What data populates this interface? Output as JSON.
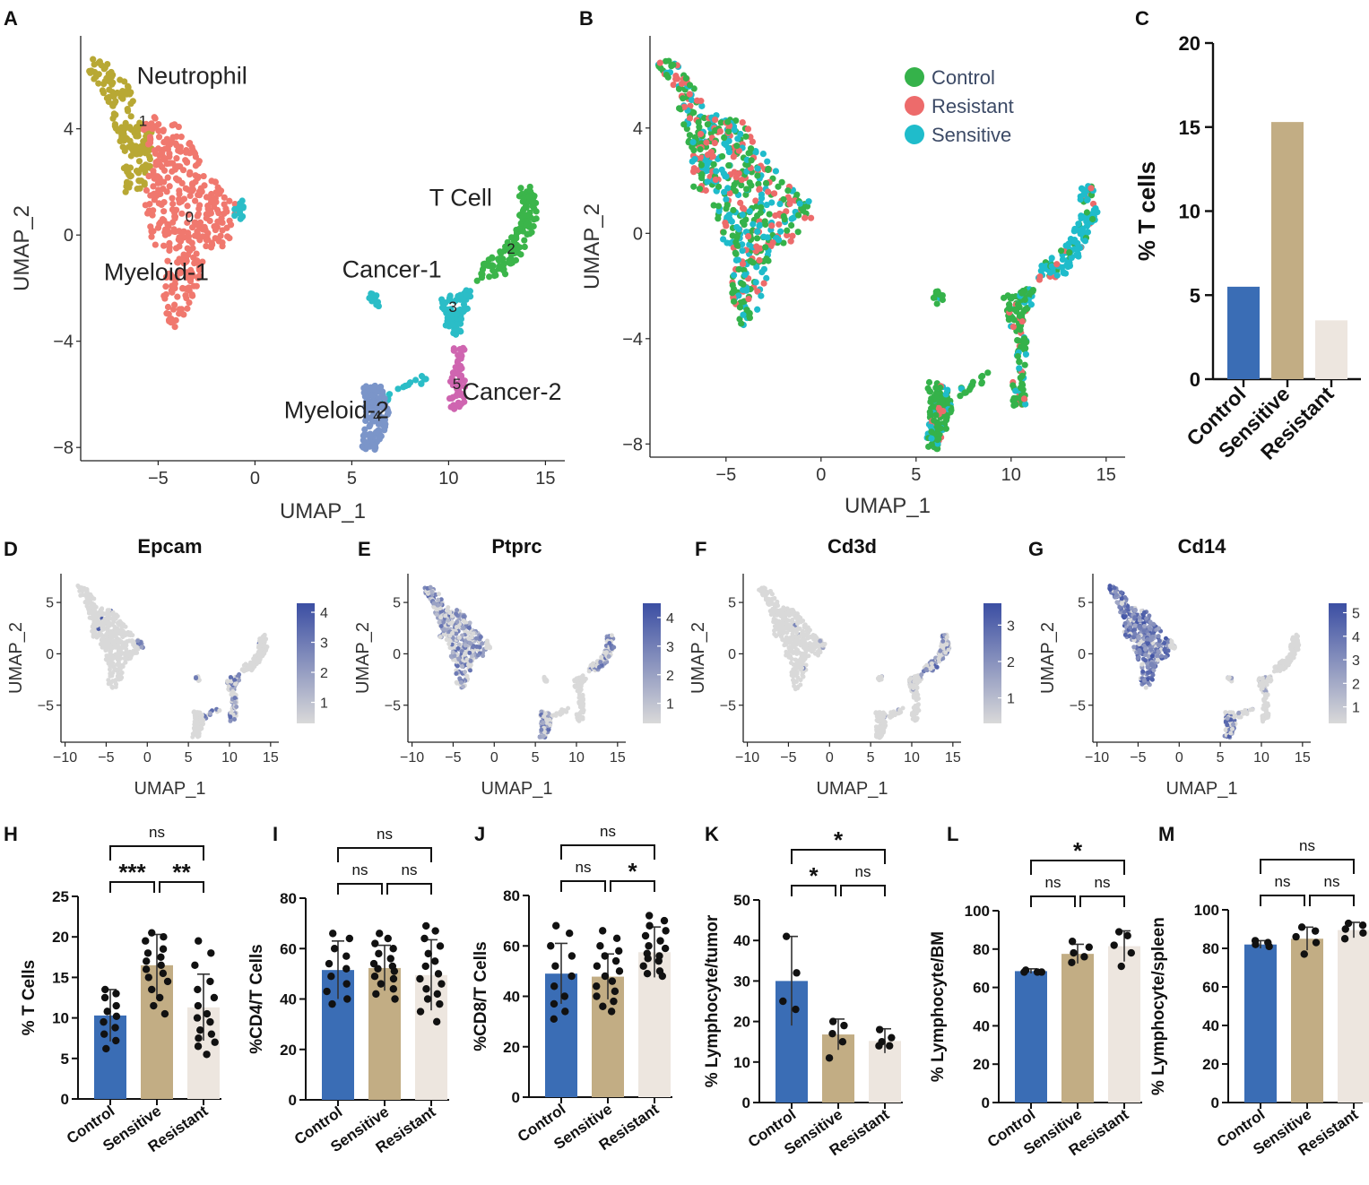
{
  "colors": {
    "control": "#3a6db5",
    "sensitive": "#c2ad84",
    "resistant": "#ede6df",
    "legend_control": "#35b24a",
    "legend_resistant": "#ed6b6b",
    "legend_sensitive": "#1fbccb",
    "cl0": "#f0786e",
    "cl1": "#b8a834",
    "cl2": "#3bb54a",
    "cl3": "#2bbdc7",
    "cl4": "#7b95c9",
    "cl5": "#cf65b0",
    "grey": "#d6d6d6",
    "feat_low": "#d9d9d9",
    "feat_high": "#3b4ea3"
  },
  "chart_data": [
    {
      "panel": "A",
      "type": "scatter",
      "xlabel": "UMAP_1",
      "ylabel": "UMAP_2",
      "xticks": [
        -5,
        0,
        5,
        10,
        15
      ],
      "yticks": [
        4,
        0,
        -4,
        -8
      ],
      "xlim": [
        -9,
        16
      ],
      "ylim": [
        -8.5,
        7.5
      ],
      "clusters": [
        {
          "id": "0",
          "name": "Myeloid-1",
          "color": "cl0"
        },
        {
          "id": "1",
          "name": "Neutrophil",
          "color": "cl1"
        },
        {
          "id": "2",
          "name": "T Cell",
          "color": "cl2"
        },
        {
          "id": "3",
          "name": "Cancer-1",
          "color": "cl3"
        },
        {
          "id": "4",
          "name": "Myeloid-2",
          "color": "cl4"
        },
        {
          "id": "5",
          "name": "Cancer-2",
          "color": "cl5"
        }
      ]
    },
    {
      "panel": "B",
      "type": "scatter",
      "xlabel": "UMAP_1",
      "ylabel": "UMAP_2",
      "xticks": [
        -5,
        0,
        5,
        10,
        15
      ],
      "yticks": [
        4,
        0,
        -4,
        -8
      ],
      "xlim": [
        -9,
        16
      ],
      "ylim": [
        -8.5,
        7.5
      ],
      "legend": [
        "Control",
        "Resistant",
        "Sensitive"
      ]
    },
    {
      "panel": "C",
      "type": "bar",
      "ylabel": "% T cells",
      "categories": [
        "Control",
        "Sensitive",
        "Resistant"
      ],
      "values": [
        5.5,
        15.3,
        3.5
      ],
      "ylim": [
        0,
        20
      ],
      "yticks": [
        0,
        5,
        10,
        15,
        20
      ]
    },
    {
      "panel": "D",
      "type": "scatter",
      "title": "Epcam",
      "xlabel": "UMAP_1",
      "ylabel": "UMAP_2",
      "xticks": [
        -10,
        -5,
        0,
        5,
        10,
        15
      ],
      "yticks": [
        5,
        0,
        -5
      ],
      "colorbar": [
        1,
        2,
        3,
        4
      ],
      "cbmax": 4.3
    },
    {
      "panel": "E",
      "type": "scatter",
      "title": "Ptprc",
      "xlabel": "UMAP_1",
      "ylabel": "UMAP_2",
      "xticks": [
        -10,
        -5,
        0,
        5,
        10,
        15
      ],
      "yticks": [
        5,
        0,
        -5
      ],
      "colorbar": [
        1,
        2,
        3,
        4
      ],
      "cbmax": 4.5
    },
    {
      "panel": "F",
      "type": "scatter",
      "title": "Cd3d",
      "xlabel": "UMAP_1",
      "ylabel": "UMAP_2",
      "xticks": [
        -10,
        -5,
        0,
        5,
        10,
        15
      ],
      "yticks": [
        5,
        0,
        -5
      ],
      "colorbar": [
        1,
        2,
        3
      ],
      "cbmax": 3.6
    },
    {
      "panel": "G",
      "type": "scatter",
      "title": "Cd14",
      "xlabel": "UMAP_1",
      "ylabel": "UMAP_2",
      "xticks": [
        -10,
        -5,
        0,
        5,
        10,
        15
      ],
      "yticks": [
        5,
        0,
        -5
      ],
      "colorbar": [
        1,
        2,
        3,
        4,
        5
      ],
      "cbmax": 5.4
    },
    {
      "panel": "H",
      "type": "bar",
      "ylabel": "% T Cells",
      "categories": [
        "Control",
        "Sensitive",
        "Resistant"
      ],
      "values": [
        10.3,
        16.5,
        11.3
      ],
      "errors": [
        3.2,
        3.8,
        4.1
      ],
      "ylim": [
        0,
        25
      ],
      "yticks": [
        0,
        5,
        10,
        15,
        20,
        25
      ],
      "points": [
        [
          13.5,
          13.0,
          12.5,
          11.5,
          10.8,
          10.2,
          9.5,
          8.8,
          8.0,
          7.2,
          6.2
        ],
        [
          20.5,
          20.0,
          19.5,
          18.5,
          18.0,
          17.5,
          17.0,
          16.5,
          16.0,
          15.5,
          15.0,
          14.5,
          13.5,
          12.5,
          11.5,
          10.5
        ],
        [
          19.5,
          18.0,
          16.5,
          14.5,
          13.5,
          12.5,
          11.5,
          10.5,
          10.0,
          9.5,
          8.5,
          8.0,
          7.5,
          7.0,
          6.5,
          5.5
        ]
      ],
      "sig": [
        {
          "a": 0,
          "b": 1,
          "label": "***"
        },
        {
          "a": 1,
          "b": 2,
          "label": "**"
        },
        {
          "a": 0,
          "b": 2,
          "label": "ns"
        }
      ]
    },
    {
      "panel": "I",
      "type": "bar",
      "ylabel": "%CD4/T Cells",
      "categories": [
        "Control",
        "Sensitive",
        "Resistant"
      ],
      "values": [
        51.5,
        52.3,
        49.5
      ],
      "errors": [
        11.5,
        9.0,
        14.0
      ],
      "ylim": [
        0,
        80
      ],
      "yticks": [
        0,
        20,
        40,
        60,
        80
      ],
      "points": [
        [
          66,
          64,
          60,
          57,
          54,
          52,
          49,
          46,
          43,
          40,
          38
        ],
        [
          66,
          64,
          62,
          60,
          58,
          56,
          54,
          53,
          52,
          51,
          49,
          48,
          46,
          44,
          42,
          40
        ],
        [
          69,
          67,
          64,
          61,
          58,
          55,
          53,
          50,
          48,
          46,
          44,
          42,
          40,
          38,
          35,
          31
        ]
      ],
      "sig": [
        {
          "a": 0,
          "b": 1,
          "label": "ns"
        },
        {
          "a": 1,
          "b": 2,
          "label": "ns"
        },
        {
          "a": 0,
          "b": 2,
          "label": "ns"
        }
      ]
    },
    {
      "panel": "J",
      "type": "bar",
      "ylabel": "%CD8/T Cells",
      "categories": [
        "Control",
        "Sensitive",
        "Resistant"
      ],
      "values": [
        49.0,
        47.8,
        57.5
      ],
      "errors": [
        12.0,
        9.0,
        10.0
      ],
      "ylim": [
        0,
        80
      ],
      "yticks": [
        0,
        20,
        40,
        60,
        80
      ],
      "points": [
        [
          68,
          65,
          60,
          56,
          52,
          48,
          44,
          40,
          37,
          34,
          31
        ],
        [
          66,
          63,
          60,
          58,
          56,
          54,
          52,
          50,
          48,
          46,
          44,
          42,
          40,
          38,
          36,
          34
        ],
        [
          72,
          70,
          68,
          66,
          64,
          62,
          60,
          59,
          57,
          56,
          55,
          54,
          52,
          50,
          49,
          48
        ]
      ],
      "sig": [
        {
          "a": 0,
          "b": 1,
          "label": "ns"
        },
        {
          "a": 1,
          "b": 2,
          "label": "*"
        },
        {
          "a": 0,
          "b": 2,
          "label": "ns"
        }
      ]
    },
    {
      "panel": "K",
      "type": "bar",
      "ylabel": "% Lymphocyte/tumor",
      "categories": [
        "Control",
        "Sensitive",
        "Resistant"
      ],
      "values": [
        30.0,
        16.8,
        15.2
      ],
      "errors": [
        11.0,
        3.8,
        3.0
      ],
      "ylim": [
        0,
        50
      ],
      "yticks": [
        0,
        10,
        20,
        30,
        40,
        50
      ],
      "points": [
        [
          41,
          32,
          25,
          23
        ],
        [
          20,
          19,
          17,
          15,
          11
        ],
        [
          18,
          16,
          15,
          14,
          14
        ]
      ],
      "sig": [
        {
          "a": 0,
          "b": 1,
          "label": "*"
        },
        {
          "a": 1,
          "b": 2,
          "label": "ns"
        },
        {
          "a": 0,
          "b": 2,
          "label": "*"
        }
      ]
    },
    {
      "panel": "L",
      "type": "bar",
      "ylabel": "% Lymphocyte/BM",
      "categories": [
        "Control",
        "Sensitive",
        "Resistant"
      ],
      "values": [
        68.5,
        77.5,
        81.5
      ],
      "errors": [
        1.2,
        5.0,
        8.0
      ],
      "ylim": [
        0,
        100
      ],
      "yticks": [
        0,
        20,
        40,
        60,
        80,
        100
      ],
      "points": [
        [
          69,
          68,
          68,
          68
        ],
        [
          84,
          81,
          78,
          76,
          73
        ],
        [
          89,
          87,
          82,
          78,
          71
        ]
      ],
      "sig": [
        {
          "a": 0,
          "b": 1,
          "label": "ns"
        },
        {
          "a": 1,
          "b": 2,
          "label": "ns"
        },
        {
          "a": 0,
          "b": 2,
          "label": "*"
        }
      ]
    },
    {
      "panel": "M",
      "type": "bar",
      "ylabel": "% Lymphocyte/spleen",
      "categories": [
        "Control",
        "Sensitive",
        "Resistant"
      ],
      "values": [
        82.0,
        85.0,
        89.5
      ],
      "errors": [
        2.0,
        6.0,
        4.0
      ],
      "ylim": [
        0,
        100
      ],
      "yticks": [
        0,
        20,
        40,
        60,
        80,
        100
      ],
      "points": [
        [
          84,
          83,
          82,
          81
        ],
        [
          91,
          89,
          86,
          83,
          77
        ],
        [
          93,
          92,
          90,
          88,
          85
        ]
      ],
      "sig": [
        {
          "a": 0,
          "b": 1,
          "label": "ns"
        },
        {
          "a": 1,
          "b": 2,
          "label": "ns"
        },
        {
          "a": 0,
          "b": 2,
          "label": "ns"
        }
      ]
    }
  ]
}
